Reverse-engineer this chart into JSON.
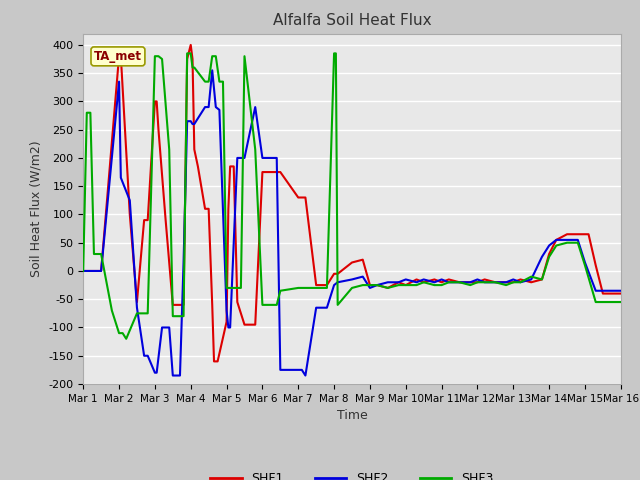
{
  "title": "Alfalfa Soil Heat Flux",
  "xlabel": "Time",
  "ylabel": "Soil Heat Flux (W/m2)",
  "ylim": [
    -200,
    420
  ],
  "yticks": [
    -200,
    -150,
    -100,
    -50,
    0,
    50,
    100,
    150,
    200,
    250,
    300,
    350,
    400
  ],
  "annotation_text": "TA_met",
  "shf1_color": "#dd0000",
  "shf2_color": "#0000dd",
  "shf3_color": "#00aa00",
  "line_width": 1.5,
  "fig_bg_color": "#c8c8c8",
  "plot_bg_color": "#e8e8e8",
  "grid_color": "#ffffff",
  "x_tick_labels": [
    "Mar 1",
    "Mar 2",
    "Mar 3",
    "Mar 4",
    "Mar 5",
    "Mar 6",
    "Mar 7",
    "Mar 8",
    "Mar 9",
    "Mar 10",
    "Mar 11",
    "Mar 12",
    "Mar 13",
    "Mar 14",
    "Mar 15",
    "Mar 16"
  ],
  "shf1_x": [
    1.0,
    1.5,
    2.0,
    2.05,
    2.3,
    2.5,
    2.7,
    2.8,
    3.0,
    3.05,
    3.1,
    3.3,
    3.5,
    3.8,
    3.9,
    4.0,
    4.05,
    4.1,
    4.2,
    4.4,
    4.5,
    4.6,
    4.65,
    4.7,
    4.75,
    5.0,
    5.05,
    5.1,
    5.2,
    5.3,
    5.5,
    5.8,
    6.0,
    6.2,
    6.5,
    7.0,
    7.2,
    7.5,
    7.8,
    8.0,
    8.1,
    8.5,
    8.8,
    9.0,
    9.2,
    9.5,
    9.8,
    10.0,
    10.3,
    10.5,
    10.8,
    11.0,
    11.2,
    11.5,
    11.8,
    12.0,
    12.2,
    12.5,
    12.8,
    13.0,
    13.2,
    13.5,
    13.8,
    14.0,
    14.2,
    14.5,
    14.8,
    15.0,
    15.1,
    15.3,
    15.5,
    15.6,
    16.0
  ],
  "shf1_y": [
    0,
    0,
    380,
    380,
    100,
    -55,
    90,
    90,
    300,
    300,
    250,
    90,
    -60,
    -60,
    375,
    400,
    375,
    215,
    185,
    110,
    110,
    -60,
    -160,
    -160,
    -160,
    -90,
    110,
    185,
    185,
    -55,
    -95,
    -95,
    175,
    175,
    175,
    130,
    130,
    -25,
    -25,
    -5,
    -5,
    15,
    20,
    -25,
    -25,
    -30,
    -20,
    -25,
    -15,
    -20,
    -15,
    -20,
    -15,
    -20,
    -20,
    -20,
    -15,
    -20,
    -20,
    -20,
    -15,
    -20,
    -15,
    30,
    55,
    65,
    65,
    65,
    65,
    10,
    -40,
    -40,
    -40
  ],
  "shf2_x": [
    1.0,
    1.5,
    2.0,
    2.05,
    2.3,
    2.5,
    2.7,
    2.8,
    3.0,
    3.05,
    3.2,
    3.4,
    3.5,
    3.6,
    3.7,
    3.8,
    3.9,
    4.0,
    4.05,
    4.1,
    4.4,
    4.5,
    4.6,
    4.7,
    4.8,
    5.0,
    5.05,
    5.1,
    5.3,
    5.5,
    5.8,
    6.0,
    6.2,
    6.4,
    6.5,
    7.0,
    7.1,
    7.2,
    7.5,
    7.8,
    8.0,
    8.1,
    8.5,
    8.8,
    9.0,
    9.2,
    9.5,
    9.8,
    10.0,
    10.3,
    10.5,
    10.8,
    11.0,
    11.2,
    11.5,
    11.8,
    12.0,
    12.2,
    12.5,
    12.8,
    13.0,
    13.2,
    13.5,
    13.8,
    14.0,
    14.2,
    14.5,
    14.8,
    15.0,
    15.3,
    15.6,
    16.0
  ],
  "shf2_y": [
    0,
    0,
    335,
    165,
    125,
    -65,
    -150,
    -150,
    -180,
    -180,
    -100,
    -100,
    -185,
    -185,
    -185,
    15,
    265,
    265,
    260,
    260,
    290,
    290,
    355,
    290,
    285,
    -70,
    -100,
    -100,
    200,
    200,
    290,
    200,
    200,
    200,
    -175,
    -175,
    -175,
    -185,
    -65,
    -65,
    -25,
    -20,
    -15,
    -10,
    -30,
    -25,
    -20,
    -20,
    -15,
    -20,
    -15,
    -20,
    -15,
    -20,
    -20,
    -20,
    -15,
    -20,
    -20,
    -20,
    -15,
    -20,
    -15,
    25,
    45,
    55,
    55,
    55,
    15,
    -35,
    -35,
    -35
  ],
  "shf3_x": [
    1.0,
    1.1,
    1.2,
    1.3,
    1.5,
    1.8,
    2.0,
    2.05,
    2.1,
    2.2,
    2.5,
    2.8,
    3.0,
    3.1,
    3.2,
    3.4,
    3.5,
    3.8,
    3.9,
    4.0,
    4.05,
    4.1,
    4.4,
    4.5,
    4.6,
    4.7,
    4.8,
    4.9,
    5.0,
    5.05,
    5.1,
    5.4,
    5.5,
    5.8,
    6.0,
    6.2,
    6.4,
    6.5,
    7.0,
    7.5,
    7.8,
    8.0,
    8.05,
    8.1,
    8.5,
    8.8,
    9.0,
    9.2,
    9.5,
    9.8,
    10.0,
    10.3,
    10.5,
    10.8,
    11.0,
    11.2,
    11.5,
    11.8,
    12.0,
    12.2,
    12.5,
    12.8,
    13.0,
    13.2,
    13.5,
    13.8,
    14.0,
    14.2,
    14.5,
    14.8,
    15.0,
    15.3,
    15.6,
    16.0
  ],
  "shf3_y": [
    0,
    280,
    280,
    30,
    30,
    -70,
    -110,
    -110,
    -110,
    -120,
    -75,
    -75,
    380,
    380,
    375,
    215,
    -80,
    -80,
    385,
    385,
    360,
    360,
    335,
    335,
    380,
    380,
    335,
    335,
    -30,
    -30,
    -30,
    -30,
    380,
    215,
    -60,
    -60,
    -60,
    -35,
    -30,
    -30,
    -30,
    385,
    385,
    -60,
    -30,
    -25,
    -25,
    -25,
    -30,
    -25,
    -25,
    -25,
    -20,
    -25,
    -25,
    -20,
    -20,
    -25,
    -20,
    -20,
    -20,
    -25,
    -20,
    -20,
    -10,
    -15,
    25,
    45,
    50,
    50,
    10,
    -55,
    -55,
    -55
  ]
}
